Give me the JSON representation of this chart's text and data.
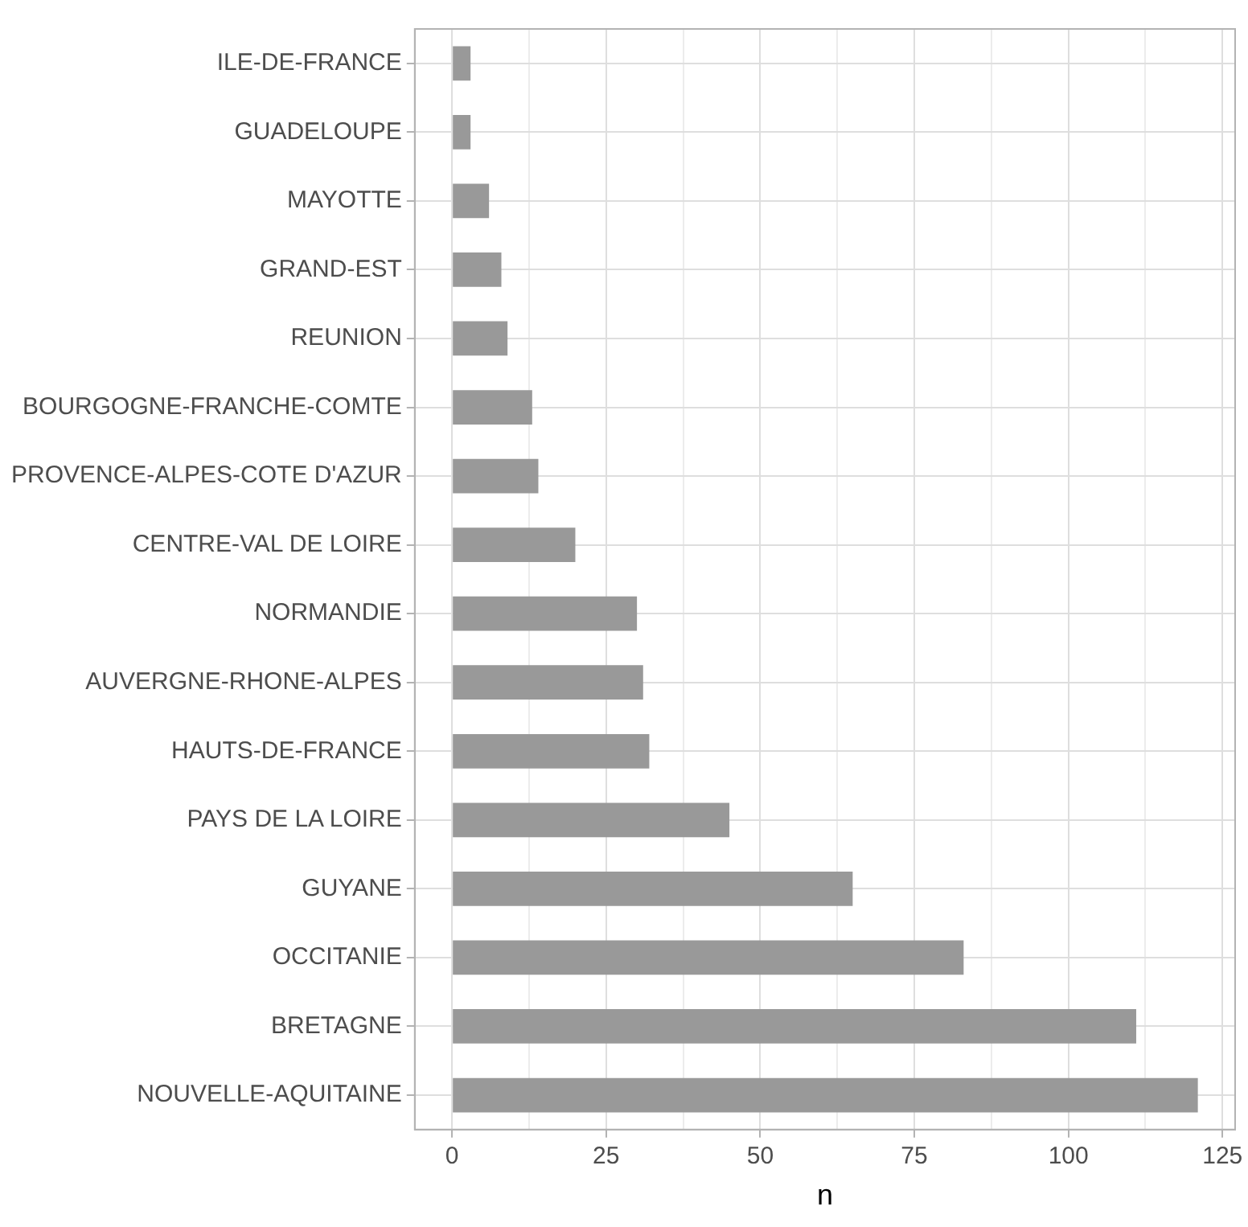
{
  "chart_data": {
    "type": "bar",
    "orientation": "horizontal",
    "xlabel": "n",
    "categories": [
      "ILE-DE-FRANCE",
      "GUADELOUPE",
      "MAYOTTE",
      "GRAND-EST",
      "REUNION",
      "BOURGOGNE-FRANCHE-COMTE",
      "PROVENCE-ALPES-COTE D'AZUR",
      "CENTRE-VAL DE LOIRE",
      "NORMANDIE",
      "AUVERGNE-RHONE-ALPES",
      "HAUTS-DE-FRANCE",
      "PAYS DE LA LOIRE",
      "GUYANE",
      "OCCITANIE",
      "BRETAGNE",
      "NOUVELLE-AQUITAINE"
    ],
    "values": [
      3,
      3,
      6,
      8,
      9,
      13,
      14,
      20,
      30,
      31,
      32,
      45,
      65,
      83,
      111,
      121
    ],
    "color": "#999999",
    "xlim": [
      -6.05,
      127.05
    ],
    "xticks": [
      0,
      {
        "value": 12.5,
        "label": null
      },
      25,
      {
        "value": 37.5,
        "label": null
      },
      50,
      {
        "value": 62.5,
        "label": null
      },
      75,
      {
        "value": 87.5,
        "label": null
      },
      100,
      {
        "value": 112.5,
        "label": null
      },
      125
    ],
    "grid": true
  }
}
